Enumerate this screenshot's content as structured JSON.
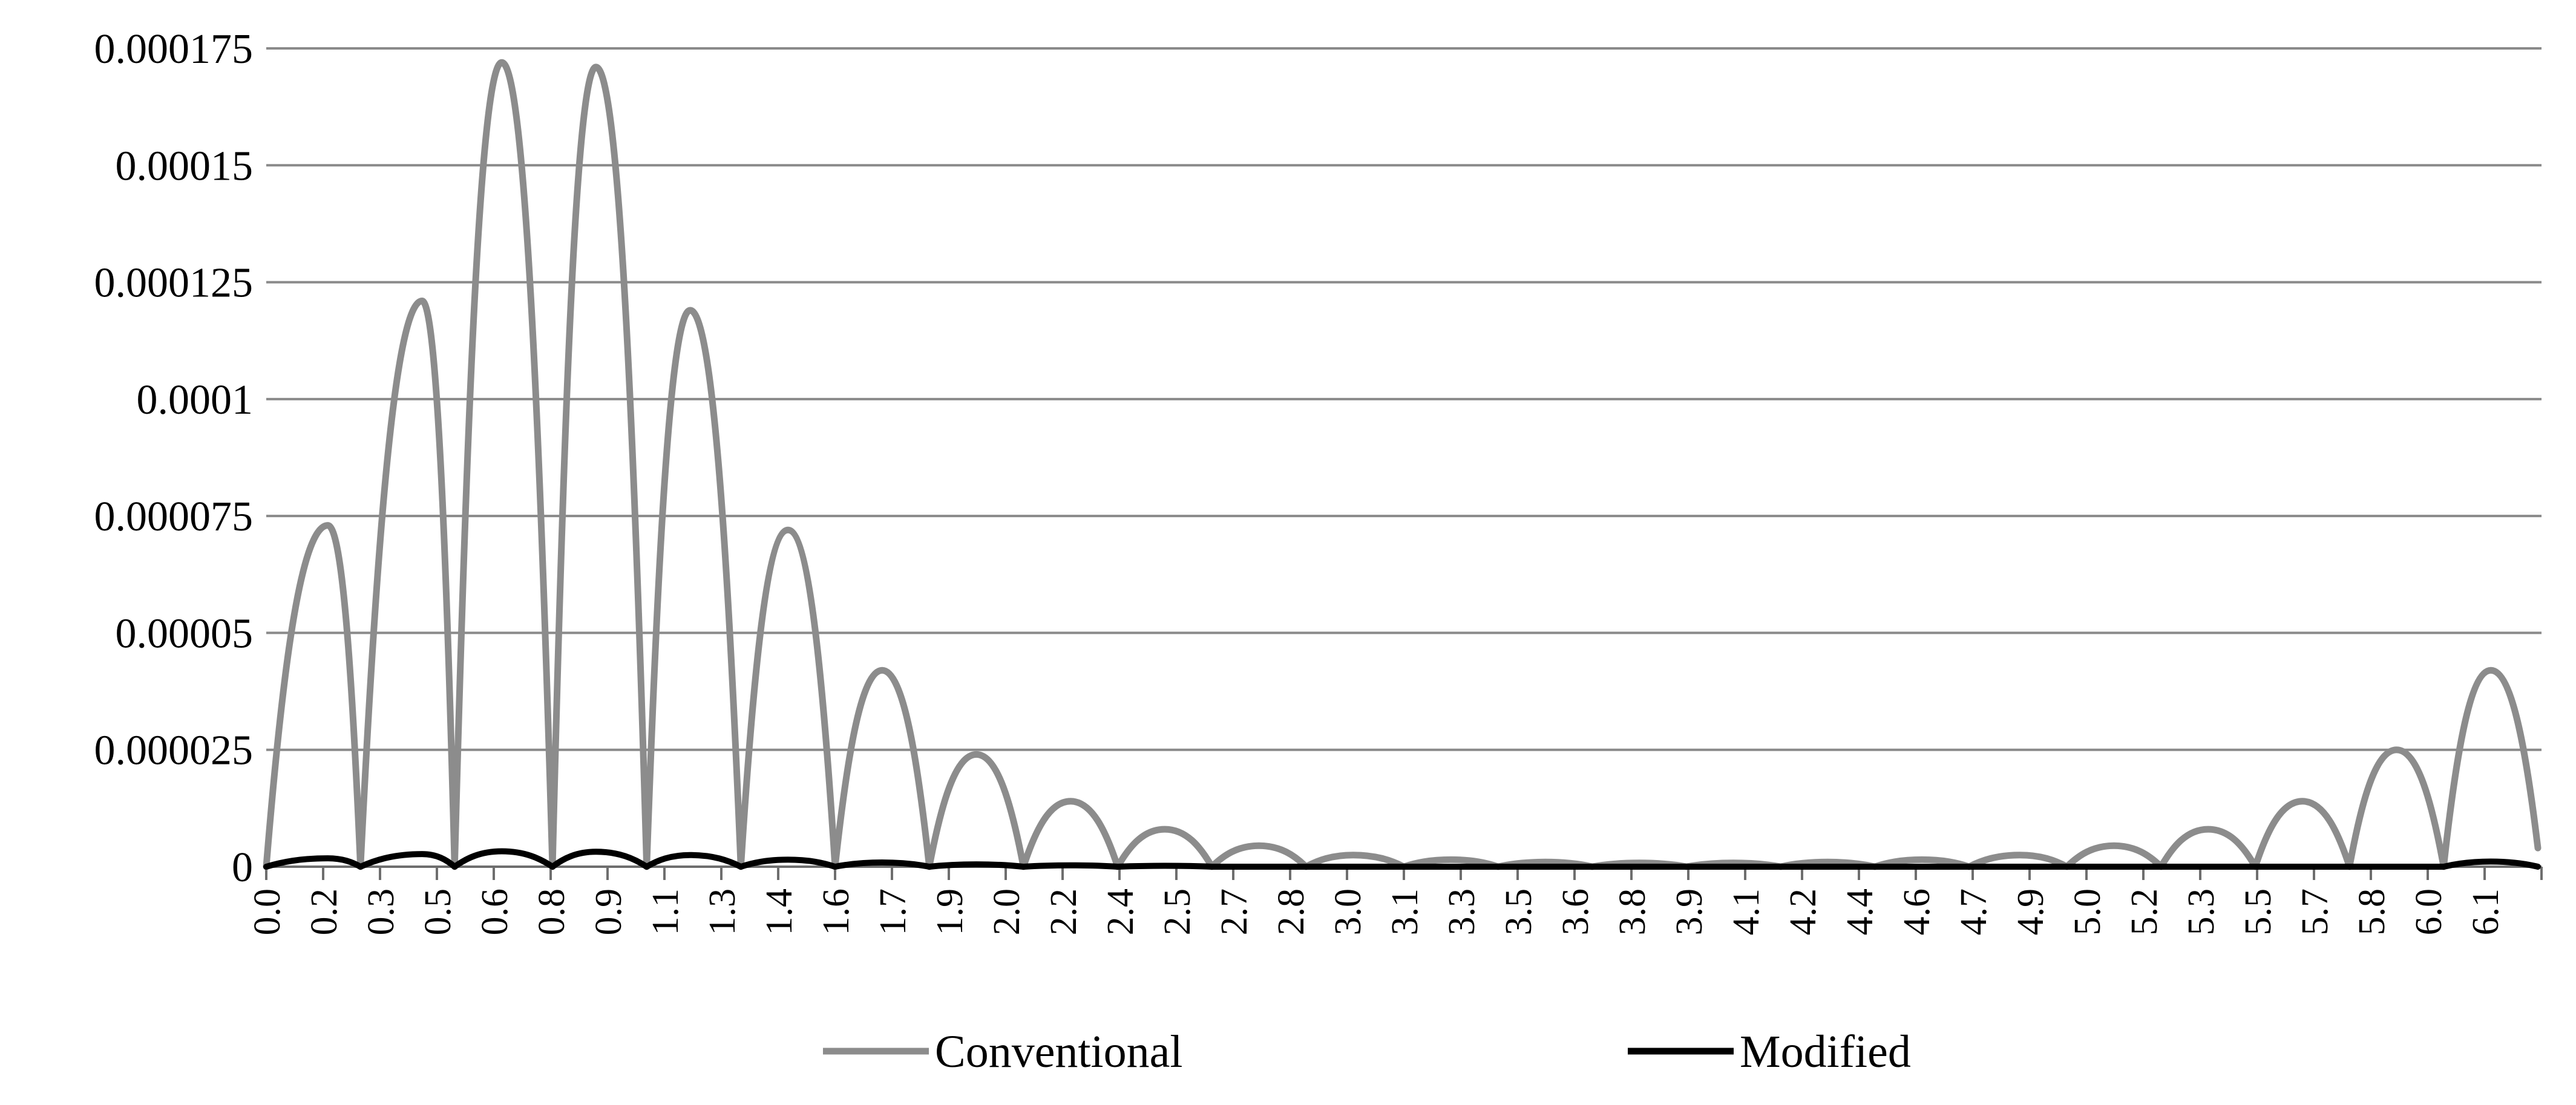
{
  "chart_data": {
    "type": "line",
    "title": "",
    "xlabel": "",
    "ylabel": "",
    "ylim": [
      0,
      0.000175
    ],
    "yticks": [
      "0",
      "0.000025",
      "0.00005",
      "0.000075",
      "0.0001",
      "0.000125",
      "0.00015",
      "0.000175"
    ],
    "xlim": [
      0,
      6.28
    ],
    "xticks": [
      "0.0",
      "0.2",
      "0.3",
      "0.5",
      "0.6",
      "0.8",
      "0.9",
      "1.1",
      "1.3",
      "1.4",
      "1.6",
      "1.7",
      "1.9",
      "2.0",
      "2.2",
      "2.4",
      "2.5",
      "2.7",
      "2.8",
      "3.0",
      "3.1",
      "3.3",
      "3.5",
      "3.6",
      "3.8",
      "3.9",
      "4.1",
      "4.2",
      "4.4",
      "4.6",
      "4.7",
      "4.9",
      "5.0",
      "5.2",
      "5.3",
      "5.5",
      "5.7",
      "5.8",
      "6.0",
      "6.1"
    ],
    "grid": "horizontal",
    "legend_position": "bottom",
    "series": [
      {
        "name": "Conventional",
        "color": "#8c8c8c",
        "x": [
          0,
          0.17,
          0.26,
          0.43,
          0.52,
          0.65,
          0.79,
          0.91,
          1.05,
          1.17,
          1.31,
          1.44,
          1.57,
          1.7,
          1.83,
          1.96,
          2.09,
          2.22,
          2.35,
          2.48,
          2.61,
          2.74,
          2.87,
          3.0,
          3.14,
          3.27,
          3.4,
          3.53,
          3.66,
          3.79,
          3.92,
          4.05,
          4.18,
          4.31,
          4.44,
          4.57,
          4.7,
          4.84,
          4.97,
          5.1,
          5.23,
          5.36,
          5.49,
          5.62,
          5.75,
          5.88,
          6.01,
          6.14,
          6.27
        ],
        "y": [
          0,
          7.3e-05,
          0,
          0.000121,
          0,
          0.000172,
          0,
          0.000171,
          0,
          0.000119,
          0,
          7.2e-05,
          0,
          4.2e-05,
          0,
          2.4e-05,
          0,
          1.4e-05,
          0,
          8e-06,
          0,
          4.5e-06,
          0,
          2.5e-06,
          0,
          1.5e-06,
          0,
          1e-06,
          0,
          8e-07,
          0,
          8e-07,
          0,
          1e-06,
          0,
          1.5e-06,
          0,
          2.5e-06,
          0,
          4.5e-06,
          0,
          8e-06,
          0,
          1.4e-05,
          0,
          2.5e-05,
          0,
          4.2e-05,
          4e-06
        ]
      },
      {
        "name": "Modified",
        "color": "#000000",
        "x": [
          0,
          0.17,
          0.26,
          0.43,
          0.52,
          0.65,
          0.79,
          0.91,
          1.05,
          1.17,
          1.31,
          1.44,
          1.57,
          1.7,
          1.83,
          1.96,
          2.09,
          2.22,
          2.35,
          2.48,
          2.61,
          6.01,
          6.14,
          6.27
        ],
        "y": [
          0,
          1.8e-06,
          0,
          2.7e-06,
          0,
          3.3e-06,
          0,
          3.2e-06,
          0,
          2.5e-06,
          0,
          1.5e-06,
          0,
          9e-07,
          0,
          5e-07,
          0,
          3e-07,
          0,
          2e-07,
          0,
          0,
          1.1e-06,
          0
        ]
      }
    ]
  },
  "legend": {
    "items": [
      {
        "label": "Conventional",
        "color": "#8c8c8c"
      },
      {
        "label": "Modified",
        "color": "#000000"
      }
    ]
  }
}
